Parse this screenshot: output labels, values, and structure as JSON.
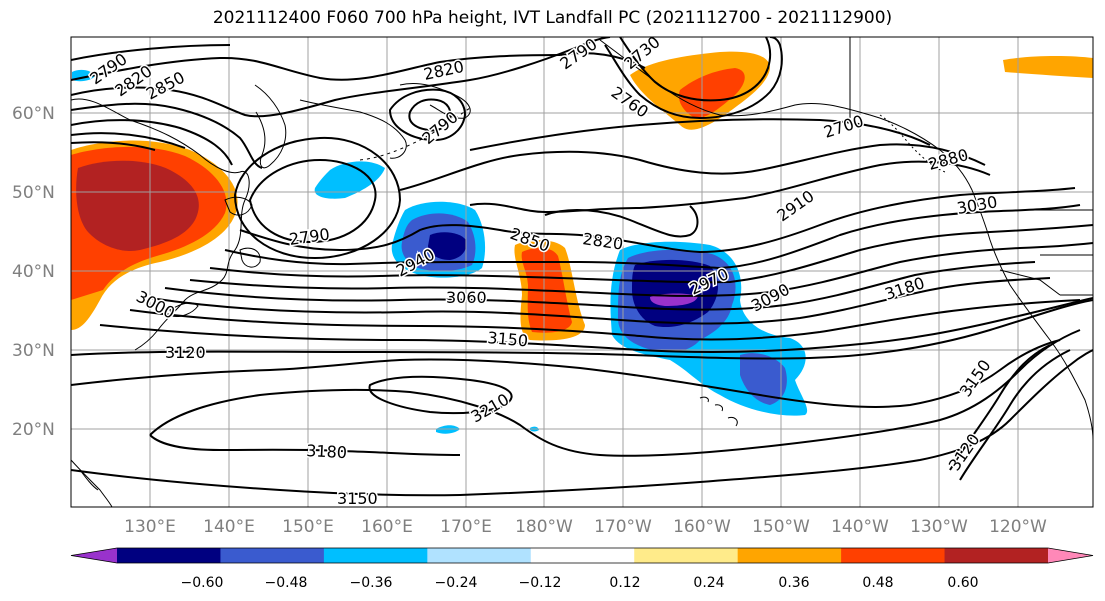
{
  "title": "2021112400 F060 700 hPa height, IVT Landfall PC (2021112700 - 2021112900)",
  "map": {
    "lat_ticks": [
      "60°N",
      "50°N",
      "40°N",
      "30°N",
      "20°N"
    ],
    "lon_ticks": [
      "130°E",
      "140°E",
      "150°E",
      "160°E",
      "170°E",
      "180°W",
      "170°W",
      "160°W",
      "150°W",
      "140°W",
      "130°W",
      "120°W"
    ],
    "contour_labels": [
      "2790",
      "2820",
      "2850",
      "2820",
      "2790",
      "2760",
      "2730",
      "2790",
      "2700",
      "2880",
      "3030",
      "2910",
      "2790",
      "2850",
      "2820",
      "2940",
      "3000",
      "3060",
      "2970",
      "3090",
      "3180",
      "3120",
      "3150",
      "3210",
      "3180",
      "3150",
      "3150",
      "3120"
    ]
  },
  "colorbar": {
    "ticks": [
      "−0.60",
      "−0.48",
      "−0.36",
      "−0.24",
      "−0.12",
      "0.12",
      "0.24",
      "0.36",
      "0.48",
      "0.60"
    ],
    "colors": [
      "#9932cc",
      "#000080",
      "#3a5bcf",
      "#00bfff",
      "#b0e2ff",
      "#ffffff",
      "#ffeb8a",
      "#ffa500",
      "#ff4000",
      "#b22222",
      "#ff88b8"
    ]
  }
}
